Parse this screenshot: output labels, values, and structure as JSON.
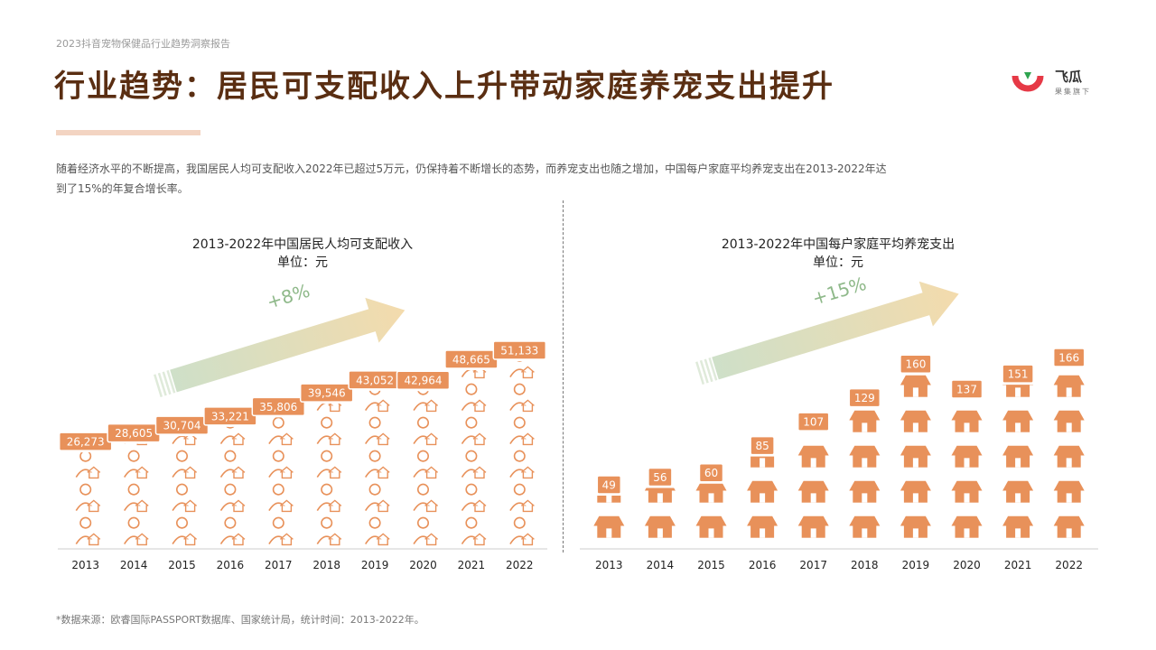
{
  "header": {
    "report_title": "2023抖音宠物保健品行业趋势洞察报告",
    "main_title": "行业趋势：居民可支配收入上升带动家庭养宠支出提升"
  },
  "logo": {
    "name": "飞瓜",
    "sub": "果集旗下",
    "icon": "feigua-logo-icon",
    "colors": [
      "#e63946",
      "#2ea44f"
    ]
  },
  "intro": "随着经济水平的不断提高，我国居民人均可支配收入2022年已超过5万元，仍保持着不断增长的态势，而养宠支出也随之增加，中国每户家庭平均养宠支出在2013-2022年达到了15%的年复合增长率。",
  "colors": {
    "accent": "#e8915a",
    "label_bg": "#e8915a",
    "arrow_start": "#c9dcc2",
    "arrow_end": "#f3d9a8",
    "growth_text": "#8fb98a"
  },
  "chart_data": [
    {
      "type": "bar",
      "title": "2013-2022年中国居民人均可支配收入",
      "unit": "单位：元",
      "growth_label": "+8%",
      "pictogram": "person-icon",
      "categories": [
        "2013",
        "2014",
        "2015",
        "2016",
        "2017",
        "2018",
        "2019",
        "2020",
        "2021",
        "2022"
      ],
      "values": [
        26273,
        28605,
        30704,
        33221,
        35806,
        39546,
        43052,
        42964,
        48665,
        51133
      ],
      "value_labels": [
        "26,273",
        "28,605",
        "30,704",
        "33,221",
        "35,806",
        "39,546",
        "43,052",
        "42,964",
        "48,665",
        "51,133"
      ]
    },
    {
      "type": "bar",
      "title": "2013-2022年中国每户家庭平均养宠支出",
      "unit": "单位：元",
      "growth_label": "+15%",
      "pictogram": "house-icon",
      "categories": [
        "2013",
        "2014",
        "2015",
        "2016",
        "2017",
        "2018",
        "2019",
        "2020",
        "2021",
        "2022"
      ],
      "values": [
        49,
        56,
        60,
        85,
        107,
        129,
        160,
        137,
        151,
        166
      ],
      "value_labels": [
        "49",
        "56",
        "60",
        "85",
        "107",
        "129",
        "160",
        "137",
        "151",
        "166"
      ]
    }
  ],
  "footnote": "*数据来源：欧睿国际PASSPORT数据库、国家统计局，统计时间：2013-2022年。"
}
